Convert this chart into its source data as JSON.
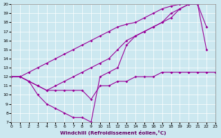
{
  "bg_color": "#cce8f0",
  "line_color": "#990099",
  "xlabel": "Windchill (Refroidissement éolien,°C)",
  "xlim": [
    0,
    23
  ],
  "ylim": [
    7,
    20
  ],
  "xticks": [
    0,
    1,
    2,
    3,
    4,
    5,
    6,
    7,
    8,
    9,
    10,
    11,
    12,
    13,
    14,
    15,
    16,
    17,
    18,
    19,
    20,
    21,
    22,
    23
  ],
  "yticks": [
    7,
    8,
    9,
    10,
    11,
    12,
    13,
    14,
    15,
    16,
    17,
    18,
    19,
    20
  ],
  "series": [
    {
      "x": [
        0,
        1,
        2,
        3,
        4,
        5,
        6,
        7,
        8,
        9,
        10,
        11,
        12,
        13,
        14,
        15,
        16,
        17,
        18,
        19,
        20,
        21
      ],
      "y": [
        12,
        12,
        12.5,
        13,
        13.5,
        14,
        14.5,
        15,
        15.5,
        16,
        16.5,
        17,
        17.5,
        17.8,
        18,
        18.5,
        19,
        19.5,
        19.8,
        20,
        20,
        20
      ]
    },
    {
      "x": [
        0,
        1,
        2,
        3,
        4,
        5,
        6,
        7,
        8,
        9,
        10,
        11,
        12,
        13,
        14,
        15,
        16,
        17,
        18,
        19,
        20,
        21,
        22
      ],
      "y": [
        12,
        12,
        11.5,
        11,
        10.5,
        11,
        11.5,
        12,
        12.5,
        13,
        13.5,
        14,
        15,
        16,
        16.5,
        17,
        17.5,
        18,
        18.5,
        19.5,
        20,
        20,
        17.5
      ]
    },
    {
      "x": [
        0,
        1,
        2,
        3,
        4,
        5,
        6,
        7,
        8,
        9,
        10,
        11,
        12,
        13,
        14,
        15,
        16,
        17,
        18,
        19,
        20,
        21,
        22
      ],
      "y": [
        12,
        12,
        11.5,
        10,
        9,
        8.5,
        8,
        7.5,
        7.5,
        7,
        12,
        12.5,
        13,
        15.5,
        16.5,
        17,
        17.5,
        18,
        19,
        19.5,
        20,
        20,
        15
      ]
    },
    {
      "x": [
        0,
        1,
        2,
        3,
        4,
        5,
        6,
        7,
        8,
        9,
        10,
        11,
        12,
        13,
        14,
        15,
        16,
        17,
        18,
        19,
        20,
        21,
        22,
        23
      ],
      "y": [
        12,
        12,
        11.5,
        11,
        10.5,
        10.5,
        10.5,
        10.5,
        10.5,
        9.5,
        11,
        11,
        11.5,
        11.5,
        12,
        12,
        12,
        12.5,
        12.5,
        12.5,
        12.5,
        12.5,
        12.5,
        12.5
      ]
    }
  ]
}
